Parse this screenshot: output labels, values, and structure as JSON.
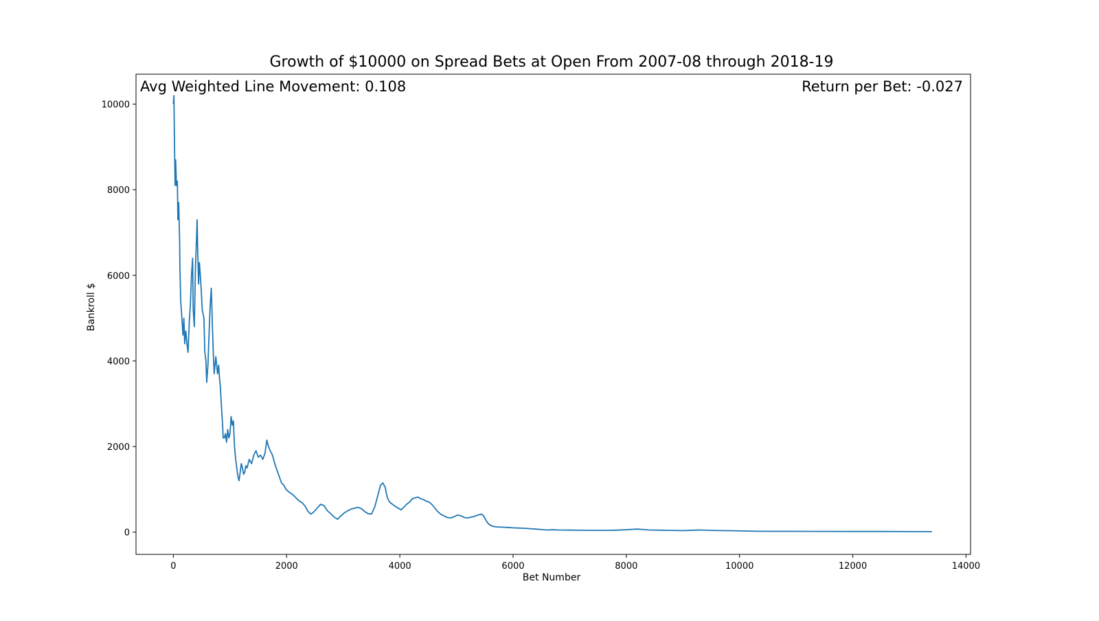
{
  "chart_data": {
    "type": "line",
    "title": "Growth of $10000 on Spread Bets at Open From 2007-08 through 2018-19",
    "xlabel": "Bet Number",
    "ylabel": "Bankroll $",
    "xlim": [
      -660,
      14080
    ],
    "ylim": [
      -520,
      10700
    ],
    "x_ticks": [
      0,
      2000,
      4000,
      6000,
      8000,
      10000,
      12000,
      14000
    ],
    "y_ticks": [
      0,
      2000,
      4000,
      6000,
      8000,
      10000
    ],
    "x_tick_labels": [
      "0",
      "2000",
      "4000",
      "6000",
      "8000",
      "10000",
      "12000",
      "14000"
    ],
    "y_tick_labels": [
      "0",
      "2000",
      "4000",
      "6000",
      "8000",
      "10000"
    ],
    "grid": false,
    "annotations": {
      "left": "Avg Weighted Line Movement: 0.108",
      "right": "Return per Bet: -0.027"
    },
    "series": [
      {
        "color": "#1f77b4",
        "points": [
          [
            0,
            10000
          ],
          [
            10,
            10200
          ],
          [
            20,
            9000
          ],
          [
            30,
            8100
          ],
          [
            40,
            8700
          ],
          [
            55,
            8100
          ],
          [
            70,
            8200
          ],
          [
            80,
            7300
          ],
          [
            95,
            7700
          ],
          [
            110,
            6800
          ],
          [
            115,
            6200
          ],
          [
            130,
            5400
          ],
          [
            150,
            5000
          ],
          [
            170,
            4600
          ],
          [
            185,
            5000
          ],
          [
            200,
            4400
          ],
          [
            220,
            4700
          ],
          [
            240,
            4400
          ],
          [
            260,
            4200
          ],
          [
            280,
            4900
          ],
          [
            300,
            5300
          ],
          [
            320,
            6000
          ],
          [
            340,
            6400
          ],
          [
            350,
            5200
          ],
          [
            370,
            4800
          ],
          [
            390,
            6200
          ],
          [
            410,
            6900
          ],
          [
            420,
            7300
          ],
          [
            430,
            6600
          ],
          [
            445,
            5800
          ],
          [
            460,
            6300
          ],
          [
            475,
            6000
          ],
          [
            490,
            5700
          ],
          [
            510,
            5200
          ],
          [
            540,
            5000
          ],
          [
            555,
            4200
          ],
          [
            575,
            4000
          ],
          [
            590,
            3500
          ],
          [
            610,
            3900
          ],
          [
            630,
            4600
          ],
          [
            650,
            5300
          ],
          [
            670,
            5700
          ],
          [
            690,
            4800
          ],
          [
            705,
            4200
          ],
          [
            720,
            3700
          ],
          [
            735,
            3900
          ],
          [
            750,
            4100
          ],
          [
            765,
            3900
          ],
          [
            780,
            3700
          ],
          [
            800,
            3900
          ],
          [
            815,
            3600
          ],
          [
            830,
            3400
          ],
          [
            850,
            2900
          ],
          [
            870,
            2500
          ],
          [
            880,
            2200
          ],
          [
            900,
            2200
          ],
          [
            920,
            2300
          ],
          [
            940,
            2100
          ],
          [
            960,
            2400
          ],
          [
            980,
            2200
          ],
          [
            1000,
            2300
          ],
          [
            1020,
            2700
          ],
          [
            1040,
            2500
          ],
          [
            1060,
            2600
          ],
          [
            1080,
            2000
          ],
          [
            1100,
            1700
          ],
          [
            1120,
            1500
          ],
          [
            1140,
            1300
          ],
          [
            1160,
            1200
          ],
          [
            1180,
            1400
          ],
          [
            1200,
            1600
          ],
          [
            1220,
            1500
          ],
          [
            1240,
            1350
          ],
          [
            1260,
            1400
          ],
          [
            1280,
            1550
          ],
          [
            1300,
            1500
          ],
          [
            1340,
            1700
          ],
          [
            1380,
            1600
          ],
          [
            1420,
            1800
          ],
          [
            1460,
            1900
          ],
          [
            1500,
            1750
          ],
          [
            1540,
            1800
          ],
          [
            1580,
            1700
          ],
          [
            1620,
            1850
          ],
          [
            1650,
            2150
          ],
          [
            1680,
            2000
          ],
          [
            1710,
            1900
          ],
          [
            1750,
            1800
          ],
          [
            1790,
            1600
          ],
          [
            1830,
            1450
          ],
          [
            1870,
            1300
          ],
          [
            1910,
            1150
          ],
          [
            1950,
            1100
          ],
          [
            1990,
            1000
          ],
          [
            2030,
            950
          ],
          [
            2080,
            900
          ],
          [
            2130,
            850
          ],
          [
            2180,
            780
          ],
          [
            2230,
            720
          ],
          [
            2280,
            680
          ],
          [
            2330,
            600
          ],
          [
            2380,
            480
          ],
          [
            2430,
            420
          ],
          [
            2480,
            470
          ],
          [
            2540,
            560
          ],
          [
            2600,
            650
          ],
          [
            2660,
            620
          ],
          [
            2720,
            500
          ],
          [
            2780,
            430
          ],
          [
            2840,
            350
          ],
          [
            2900,
            300
          ],
          [
            2960,
            380
          ],
          [
            3020,
            450
          ],
          [
            3080,
            500
          ],
          [
            3140,
            540
          ],
          [
            3200,
            560
          ],
          [
            3260,
            580
          ],
          [
            3320,
            550
          ],
          [
            3380,
            480
          ],
          [
            3440,
            430
          ],
          [
            3500,
            420
          ],
          [
            3560,
            600
          ],
          [
            3620,
            900
          ],
          [
            3660,
            1100
          ],
          [
            3700,
            1150
          ],
          [
            3740,
            1050
          ],
          [
            3780,
            800
          ],
          [
            3820,
            700
          ],
          [
            3870,
            650
          ],
          [
            3920,
            600
          ],
          [
            3970,
            560
          ],
          [
            4020,
            520
          ],
          [
            4070,
            580
          ],
          [
            4120,
            650
          ],
          [
            4170,
            700
          ],
          [
            4220,
            780
          ],
          [
            4270,
            800
          ],
          [
            4320,
            820
          ],
          [
            4370,
            780
          ],
          [
            4420,
            760
          ],
          [
            4470,
            720
          ],
          [
            4520,
            700
          ],
          [
            4570,
            640
          ],
          [
            4620,
            560
          ],
          [
            4670,
            480
          ],
          [
            4720,
            420
          ],
          [
            4780,
            380
          ],
          [
            4840,
            340
          ],
          [
            4900,
            330
          ],
          [
            4960,
            360
          ],
          [
            5020,
            400
          ],
          [
            5080,
            380
          ],
          [
            5140,
            340
          ],
          [
            5200,
            330
          ],
          [
            5260,
            350
          ],
          [
            5320,
            370
          ],
          [
            5380,
            400
          ],
          [
            5440,
            420
          ],
          [
            5480,
            380
          ],
          [
            5520,
            280
          ],
          [
            5560,
            200
          ],
          [
            5600,
            160
          ],
          [
            5660,
            130
          ],
          [
            5720,
            120
          ],
          [
            5800,
            115
          ],
          [
            5900,
            110
          ],
          [
            6000,
            100
          ],
          [
            6100,
            95
          ],
          [
            6200,
            90
          ],
          [
            6300,
            80
          ],
          [
            6400,
            70
          ],
          [
            6500,
            60
          ],
          [
            6600,
            50
          ],
          [
            6700,
            55
          ],
          [
            6800,
            50
          ],
          [
            6900,
            48
          ],
          [
            7000,
            46
          ],
          [
            7200,
            44
          ],
          [
            7400,
            42
          ],
          [
            7600,
            40
          ],
          [
            7800,
            45
          ],
          [
            8000,
            55
          ],
          [
            8100,
            65
          ],
          [
            8200,
            70
          ],
          [
            8300,
            60
          ],
          [
            8400,
            50
          ],
          [
            8600,
            45
          ],
          [
            8800,
            40
          ],
          [
            9000,
            35
          ],
          [
            9200,
            45
          ],
          [
            9300,
            50
          ],
          [
            9500,
            40
          ],
          [
            9700,
            35
          ],
          [
            9900,
            32
          ],
          [
            10100,
            25
          ],
          [
            10300,
            20
          ],
          [
            10600,
            18
          ],
          [
            11000,
            17
          ],
          [
            11500,
            16
          ],
          [
            12000,
            15
          ],
          [
            12500,
            14
          ],
          [
            13000,
            12
          ],
          [
            13400,
            10
          ]
        ]
      }
    ]
  }
}
